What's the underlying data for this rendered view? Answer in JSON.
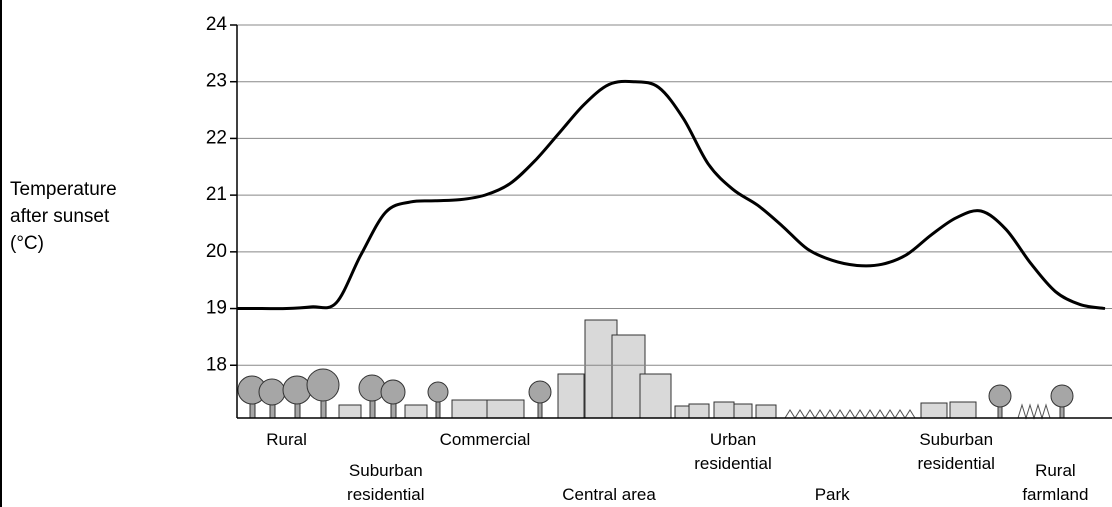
{
  "chart_data": {
    "type": "line",
    "y_label": "Temperature\nafter sunset\n(°C)",
    "categories": [
      null,
      null,
      "Rural",
      null,
      null,
      null,
      "Suburban\nresidential",
      null,
      null,
      null,
      "Commercial",
      null,
      null,
      null,
      null,
      "Central area",
      null,
      null,
      null,
      null,
      "Urban\nresidential",
      null,
      null,
      null,
      "Park",
      null,
      null,
      null,
      null,
      "Suburban\nresidential",
      null,
      null,
      null,
      "Rural\nfarmland",
      null,
      null
    ],
    "values": [
      19.0,
      19.0,
      19.0,
      19.03,
      19.1,
      19.95,
      20.7,
      20.88,
      20.9,
      20.92,
      21.0,
      21.2,
      21.6,
      22.1,
      22.6,
      22.95,
      23.0,
      22.9,
      22.35,
      21.55,
      21.1,
      20.82,
      20.45,
      20.05,
      19.85,
      19.76,
      19.78,
      19.95,
      20.3,
      20.6,
      20.72,
      20.4,
      19.8,
      19.3,
      19.07,
      19.0
    ],
    "color": "#000000",
    "ylim": [
      17.07,
      24
    ],
    "yticks": [
      18,
      19,
      20,
      21,
      22,
      23,
      24
    ],
    "grid": true
  }
}
